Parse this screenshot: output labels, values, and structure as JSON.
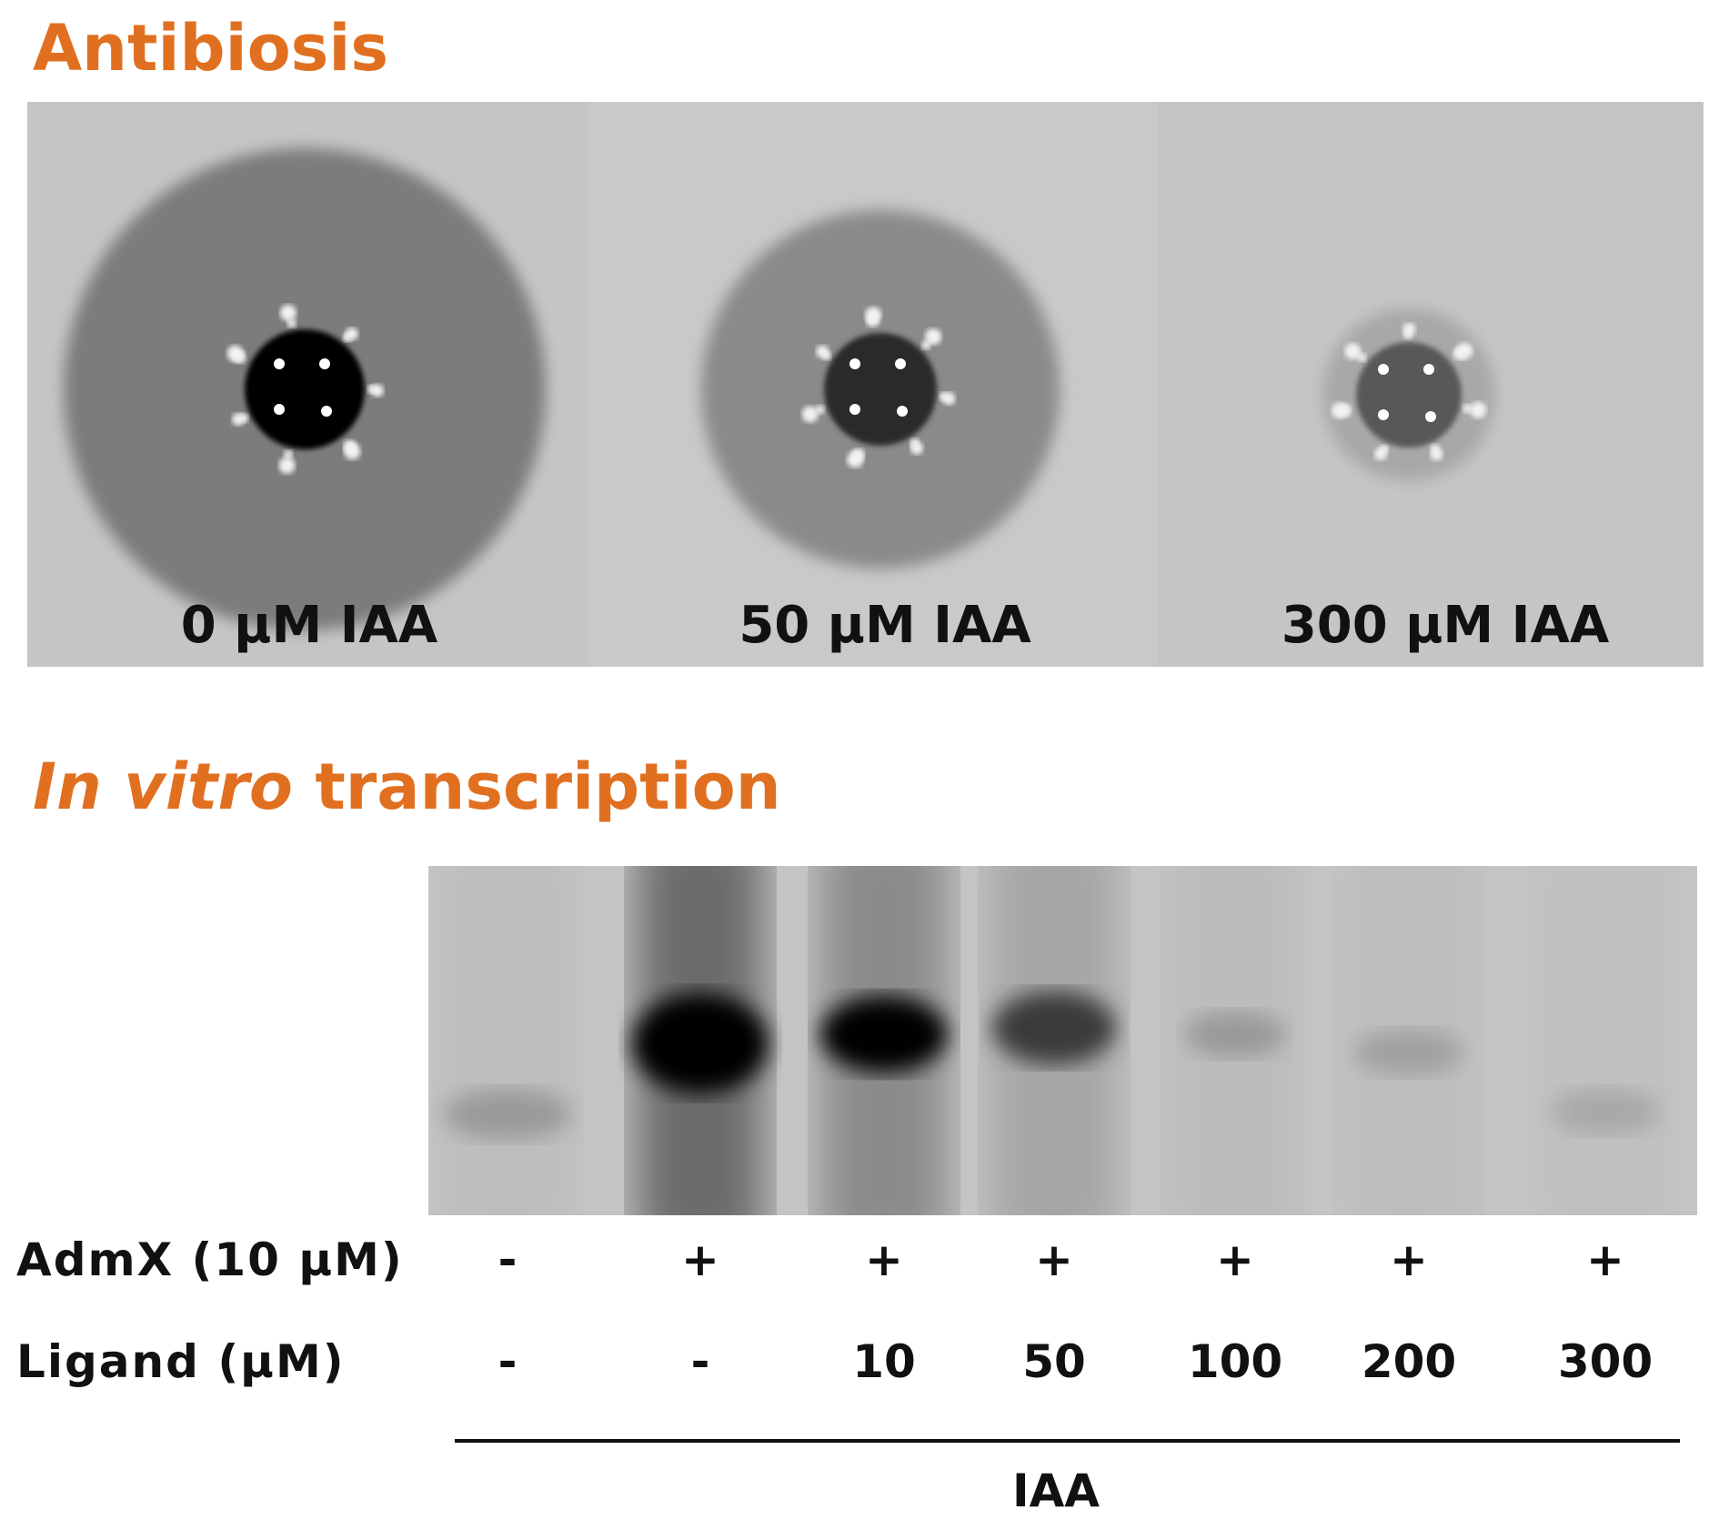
{
  "antibiosis": {
    "title": "Antibiosis",
    "panels": [
      {
        "label": "0 μM IAA"
      },
      {
        "label": "50 μM IAA"
      },
      {
        "label": "300 μM IAA"
      }
    ]
  },
  "in_vitro_transcription": {
    "title_italic": "In vitro",
    "title_rest": "transcription",
    "rows": [
      {
        "label": "AdmX (10 μM)",
        "values": [
          "-",
          "+",
          "+",
          "+",
          "+",
          "+",
          "+"
        ]
      },
      {
        "label": "Ligand (μM)",
        "values": [
          "-",
          "-",
          10,
          50,
          100,
          200,
          300
        ]
      }
    ],
    "bracket_label": "IAA"
  }
}
